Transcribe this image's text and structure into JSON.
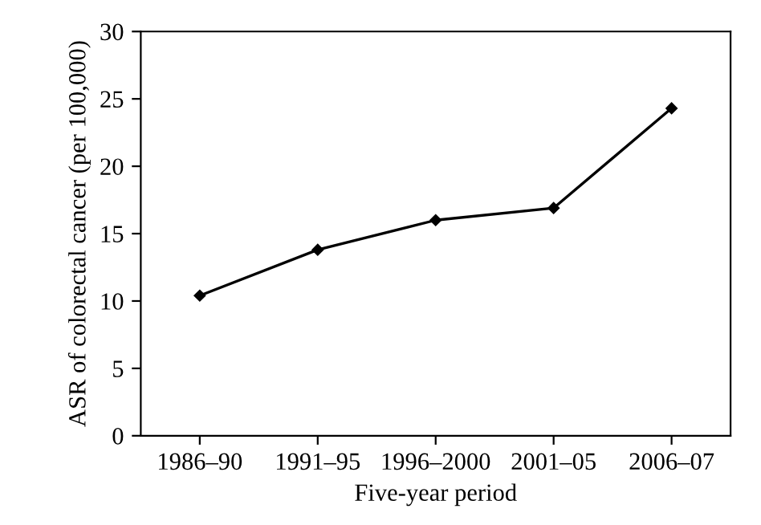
{
  "chart_data": {
    "type": "line",
    "xlabel": "Five-year period",
    "ylabel": "ASR of colorectal cancer (per 100,000)",
    "categories": [
      "1986–90",
      "1991–95",
      "1996–2000",
      "2001–05",
      "2006–07"
    ],
    "series": [
      {
        "color": "#000000",
        "values": [
          10.4,
          13.8,
          16.0,
          16.9,
          24.3
        ]
      }
    ],
    "ylim": [
      0,
      30
    ],
    "yticks": [
      0,
      5,
      10,
      15,
      20,
      25,
      30
    ],
    "grid": false,
    "marker": "diamond",
    "line_style": "solid"
  }
}
